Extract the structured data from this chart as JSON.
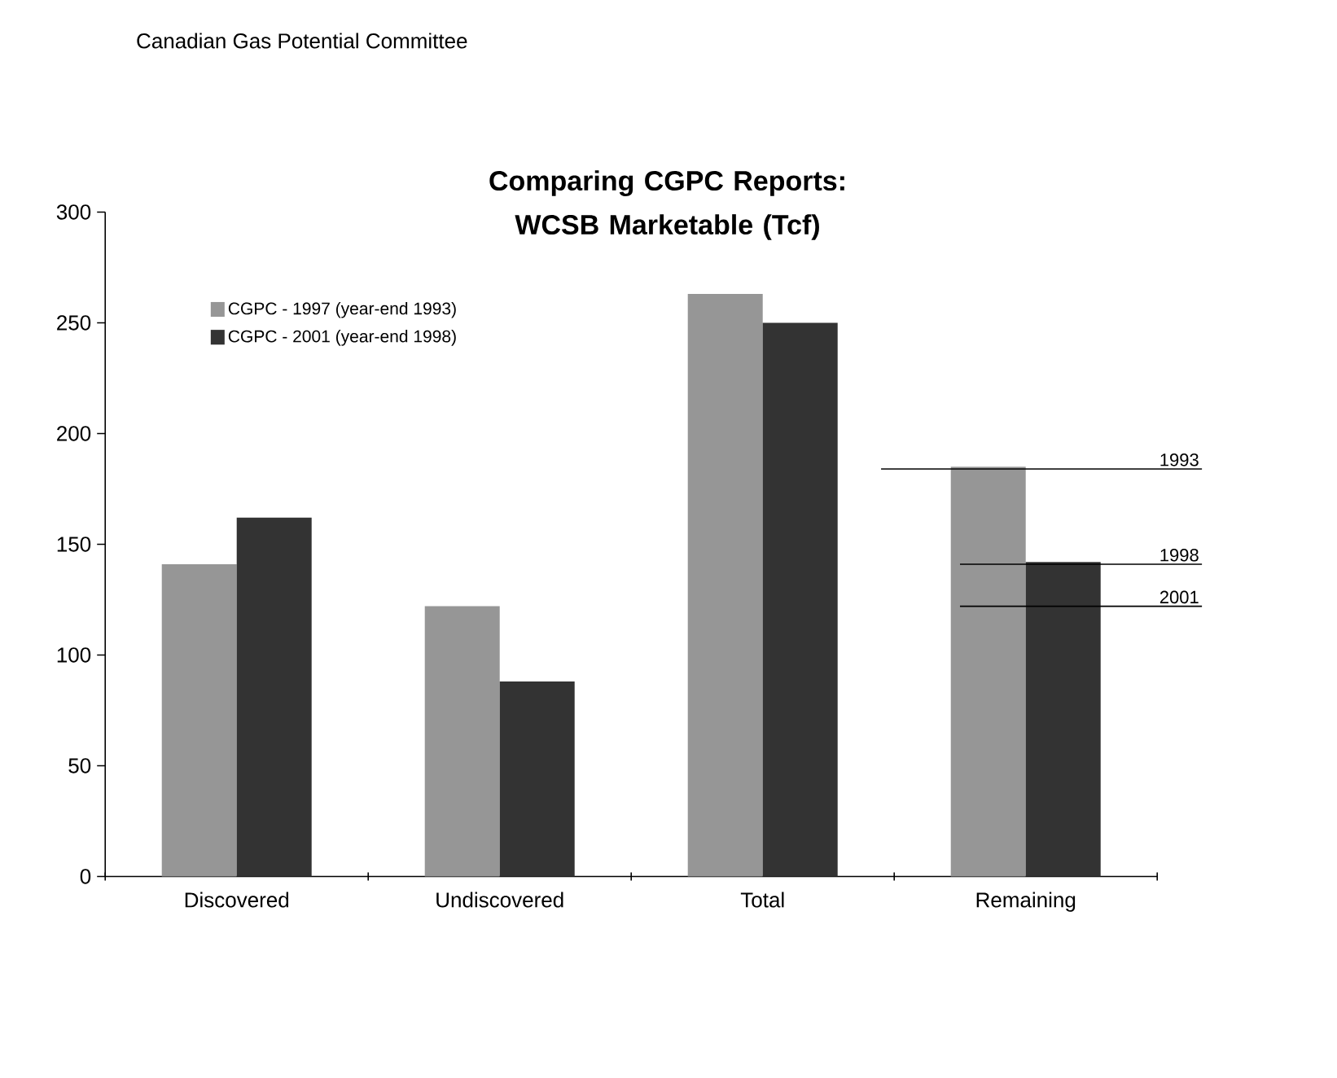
{
  "chart_data": {
    "type": "bar",
    "title": "Comparing CGPC Reports:  WCSB Marketable (Tcf)",
    "categories": [
      "Discovered",
      "Undiscovered",
      "Total",
      "Remaining"
    ],
    "series": [
      {
        "name": "CGPC - 1997 (year-end 1993)",
        "color": "#969696",
        "values": [
          141,
          122,
          263,
          185
        ]
      },
      {
        "name": "CGPC - 2001 (year-end 1998)",
        "color": "#333333",
        "values": [
          162,
          88,
          250,
          142
        ]
      }
    ],
    "ylim": [
      0,
      300
    ],
    "yticks": [
      0,
      50,
      100,
      150,
      200,
      250,
      300
    ],
    "ref_lines": [
      {
        "axis": "y",
        "value": 184
      },
      {
        "axis": "y",
        "value": 141
      },
      {
        "axis": "y",
        "value": 122
      }
    ],
    "annotations": [
      "Canadian Gas Potential Committee",
      "1993",
      "1998",
      "2001"
    ],
    "legend": "top left",
    "grid": false
  }
}
